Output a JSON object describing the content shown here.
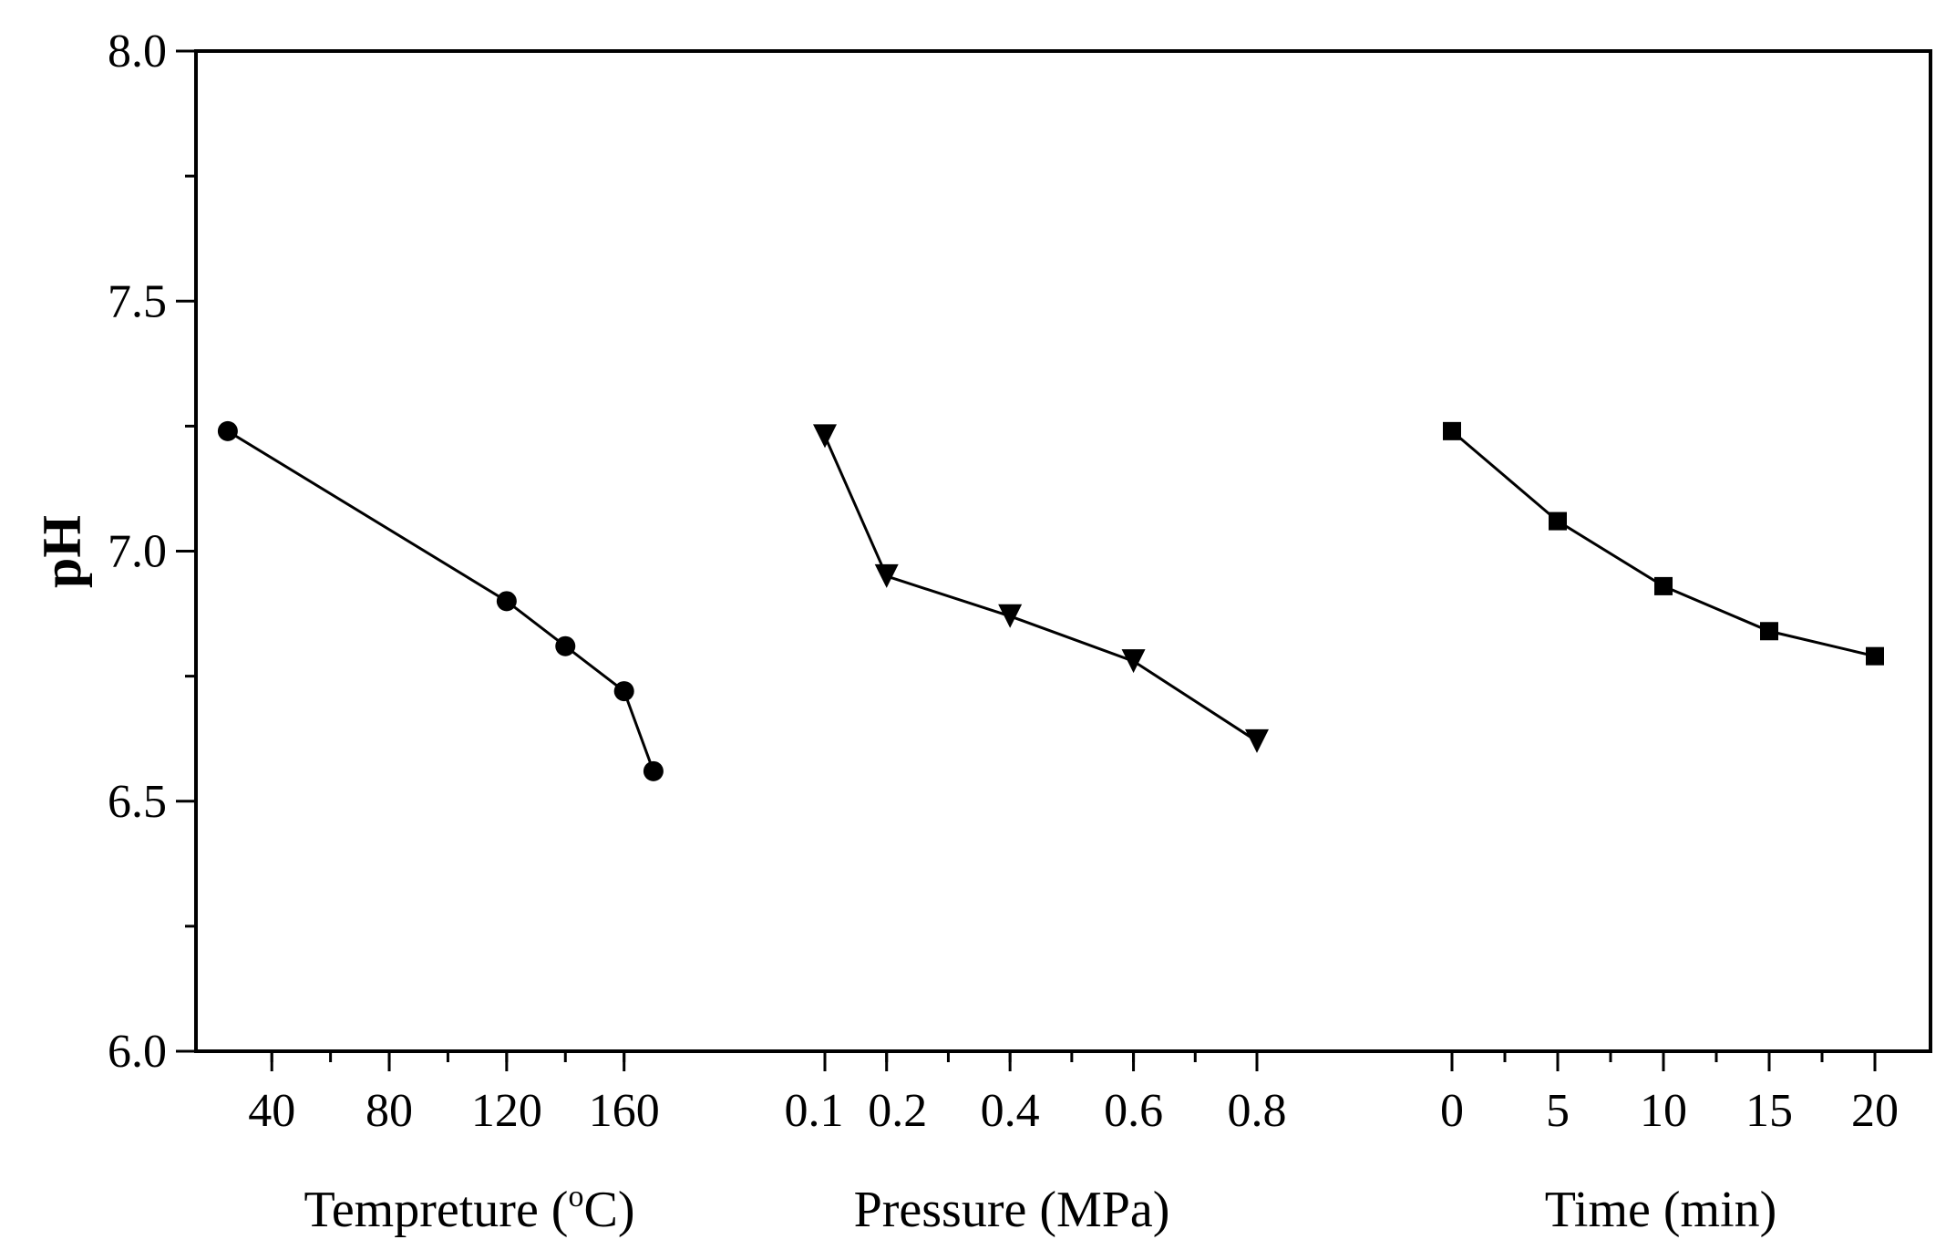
{
  "chart_data": {
    "type": "line",
    "title": "",
    "ylabel": "pH",
    "ylim": [
      6.0,
      8.0
    ],
    "yticks": [
      "6.0",
      "6.5",
      "7.0",
      "7.5",
      "8.0"
    ],
    "color": "#000000",
    "panels": [
      {
        "name": "temperature",
        "xlabel_main": "Tempreture (",
        "xlabel_sup": "o",
        "xlabel_end": "C)",
        "xlim": [
          30,
          175
        ],
        "xticks": [
          40,
          80,
          120,
          160
        ],
        "xtick_labels": [
          "40",
          "80",
          "120",
          "160"
        ],
        "minor_step": 20,
        "marker": "circle",
        "x": [
          25,
          120,
          140,
          160,
          170
        ],
        "y": [
          7.24,
          6.9,
          6.81,
          6.72,
          6.56
        ]
      },
      {
        "name": "pressure",
        "xlabel": "Pressure (MPa)",
        "xlim": [
          0.1,
          0.8
        ],
        "xticks": [
          0.1,
          0.2,
          0.4,
          0.6,
          0.8
        ],
        "xtick_labels": [
          "0.1",
          "0.2",
          "0.4",
          "0.6",
          "0.8"
        ],
        "minor_step": 0.1,
        "marker": "triangle-down",
        "x": [
          0.1,
          0.2,
          0.4,
          0.6,
          0.8
        ],
        "y": [
          7.23,
          6.95,
          6.87,
          6.78,
          6.62
        ]
      },
      {
        "name": "time",
        "xlabel": "Time (min)",
        "xlim": [
          0,
          20
        ],
        "xticks": [
          0,
          5,
          10,
          15,
          20
        ],
        "xtick_labels": [
          "0",
          "5",
          "10",
          "15",
          "20"
        ],
        "minor_step": 2.5,
        "marker": "square",
        "x": [
          0,
          5,
          10,
          15,
          20
        ],
        "y": [
          7.24,
          7.06,
          6.93,
          6.84,
          6.79
        ]
      }
    ]
  }
}
